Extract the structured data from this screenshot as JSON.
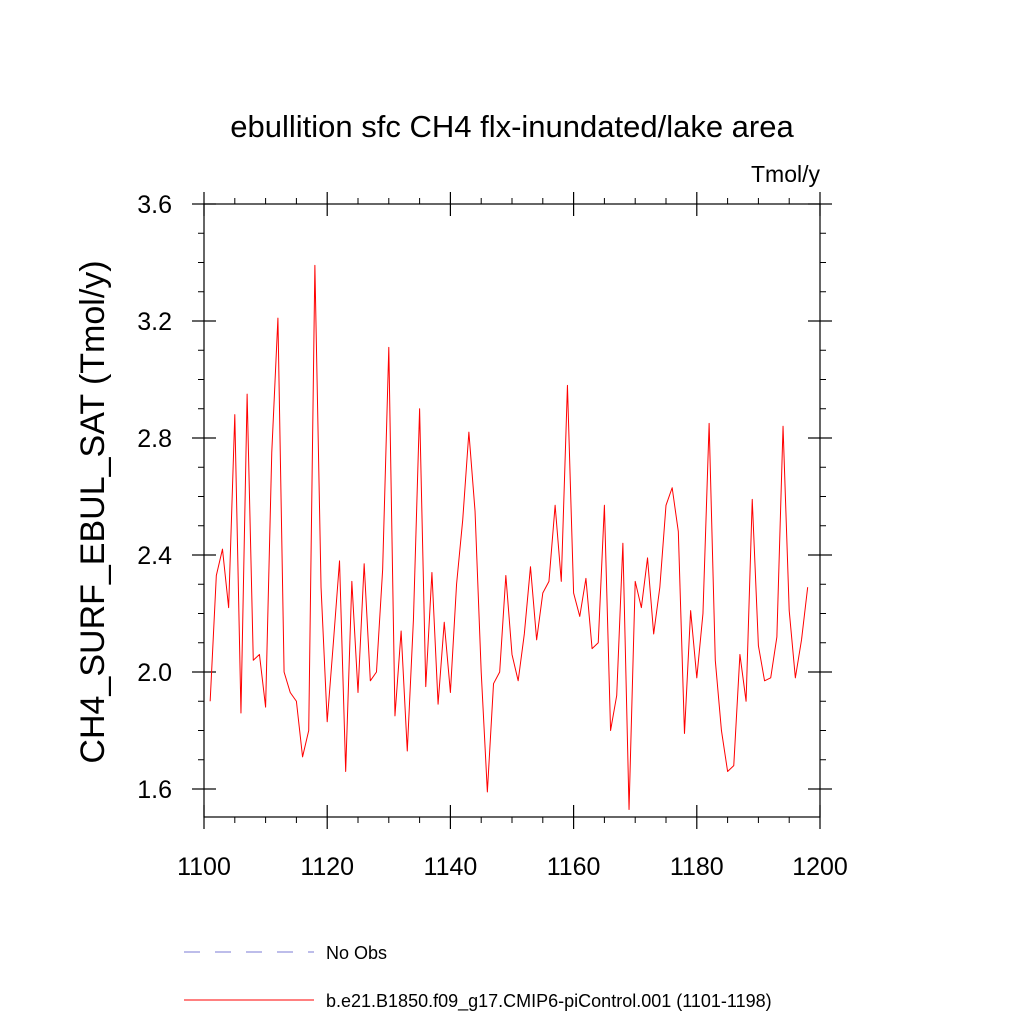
{
  "chart_data": {
    "type": "line",
    "title": "ebullition sfc CH4 flx-inundated/lake area",
    "units": "Tmol/y",
    "xlabel": "",
    "ylabel": "CH4_SURF_EBUL_SAT  (Tmol/y)",
    "xlim": [
      1100,
      1200
    ],
    "ylim": [
      1.5,
      3.65
    ],
    "x_ticks": [
      1100,
      1120,
      1140,
      1160,
      1180,
      1200
    ],
    "x_tick_labels": [
      "1100",
      "1120",
      "1140",
      "1160",
      "1180",
      "1200"
    ],
    "y_ticks": [
      1.6,
      2.0,
      2.4,
      2.8,
      3.2,
      3.6
    ],
    "y_tick_labels": [
      "1.6",
      "2.0",
      "2.4",
      "2.8",
      "3.2",
      "3.6"
    ],
    "grid": false,
    "legend_position": "bottom",
    "legend": [
      {
        "label": "No Obs",
        "color": "#7b7bd6",
        "style": "dashed"
      },
      {
        "label": "b.e21.B1850.f09_g17.CMIP6-piControl.001 (1101-1198)",
        "color": "#ff0000",
        "style": "solid"
      }
    ],
    "series": [
      {
        "color": "#ff0000",
        "x": [
          1101,
          1102,
          1103,
          1104,
          1105,
          1106,
          1107,
          1108,
          1109,
          1110,
          1111,
          1112,
          1113,
          1114,
          1115,
          1116,
          1117,
          1118,
          1119,
          1120,
          1121,
          1122,
          1123,
          1124,
          1125,
          1126,
          1127,
          1128,
          1129,
          1130,
          1131,
          1132,
          1133,
          1134,
          1135,
          1136,
          1137,
          1138,
          1139,
          1140,
          1141,
          1142,
          1143,
          1144,
          1145,
          1146,
          1147,
          1148,
          1149,
          1150,
          1151,
          1152,
          1153,
          1154,
          1155,
          1156,
          1157,
          1158,
          1159,
          1160,
          1161,
          1162,
          1163,
          1164,
          1165,
          1166,
          1167,
          1168,
          1169,
          1170,
          1171,
          1172,
          1173,
          1174,
          1175,
          1176,
          1177,
          1178,
          1179,
          1180,
          1181,
          1182,
          1183,
          1184,
          1185,
          1186,
          1187,
          1188,
          1189,
          1190,
          1191,
          1192,
          1193,
          1194,
          1195,
          1196,
          1197,
          1198
        ],
        "values": [
          1.9,
          2.33,
          2.42,
          2.22,
          2.88,
          1.86,
          2.95,
          2.04,
          2.06,
          1.88,
          2.75,
          3.21,
          2.0,
          1.93,
          1.9,
          1.71,
          1.8,
          3.39,
          2.29,
          1.83,
          2.1,
          2.38,
          1.66,
          2.31,
          1.93,
          2.37,
          1.97,
          2.0,
          2.35,
          3.11,
          1.85,
          2.14,
          1.73,
          2.18,
          2.9,
          1.95,
          2.34,
          1.89,
          2.17,
          1.93,
          2.3,
          2.52,
          2.82,
          2.55,
          2.0,
          1.59,
          1.96,
          2.0,
          2.33,
          2.06,
          1.97,
          2.13,
          2.36,
          2.11,
          2.27,
          2.31,
          2.57,
          2.31,
          2.98,
          2.27,
          2.19,
          2.32,
          2.08,
          2.1,
          2.57,
          1.8,
          1.92,
          2.44,
          1.53,
          2.31,
          2.22,
          2.39,
          2.13,
          2.29,
          2.57,
          2.63,
          2.48,
          1.79,
          2.21,
          1.98,
          2.2,
          2.85,
          2.04,
          1.8,
          1.66,
          1.68,
          2.06,
          1.9,
          2.59,
          2.09,
          1.97,
          1.98,
          2.12,
          2.84,
          2.21,
          1.98,
          2.11,
          2.29
        ]
      }
    ]
  }
}
